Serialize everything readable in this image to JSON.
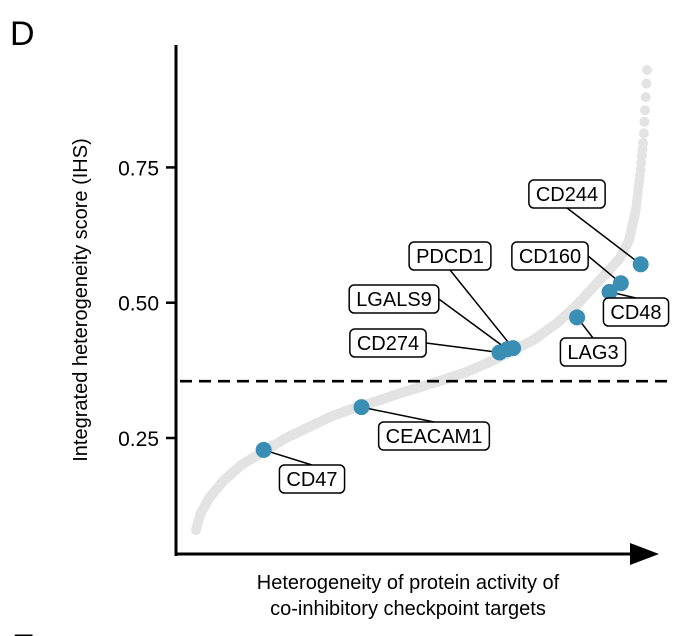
{
  "panel": {
    "letter": "D",
    "next_letter": "E"
  },
  "chart_data": {
    "type": "scatter",
    "xlabel_lines": [
      "Heterogeneity of protein activity of",
      "co-inhibitory checkpoint targets"
    ],
    "ylabel": "Integrated heterogeneity score (IHS)",
    "ylim": [
      0.06,
      0.97
    ],
    "yticks": [
      0.25,
      0.5,
      0.75
    ],
    "ytick_labels": [
      "0.25",
      "0.50",
      "0.75"
    ],
    "threshold": 0.355,
    "background_color": "#e3e3e3",
    "highlight_color": "#3a8db3",
    "background_curve": [
      [
        0.0,
        0.08
      ],
      [
        0.01,
        0.11
      ],
      [
        0.03,
        0.14
      ],
      [
        0.06,
        0.17
      ],
      [
        0.1,
        0.2
      ],
      [
        0.15,
        0.225
      ],
      [
        0.2,
        0.25
      ],
      [
        0.25,
        0.27
      ],
      [
        0.3,
        0.29
      ],
      [
        0.35,
        0.305
      ],
      [
        0.4,
        0.318
      ],
      [
        0.45,
        0.332
      ],
      [
        0.5,
        0.345
      ],
      [
        0.55,
        0.358
      ],
      [
        0.6,
        0.372
      ],
      [
        0.65,
        0.39
      ],
      [
        0.7,
        0.41
      ],
      [
        0.75,
        0.432
      ],
      [
        0.8,
        0.462
      ],
      [
        0.84,
        0.492
      ],
      [
        0.88,
        0.528
      ],
      [
        0.91,
        0.555
      ],
      [
        0.94,
        0.582
      ],
      [
        0.96,
        0.615
      ],
      [
        0.975,
        0.67
      ],
      [
        0.985,
        0.74
      ],
      [
        0.992,
        0.8
      ],
      [
        0.996,
        0.86
      ],
      [
        1.0,
        0.93
      ]
    ],
    "highlighted": [
      {
        "label": "CD47",
        "x": 0.15,
        "y": 0.228
      },
      {
        "label": "CEACAM1",
        "x": 0.367,
        "y": 0.307
      },
      {
        "label": "CD274",
        "x": 0.673,
        "y": 0.408
      },
      {
        "label": "LGALS9",
        "x": 0.69,
        "y": 0.414
      },
      {
        "label": "PDCD1",
        "x": 0.703,
        "y": 0.416
      },
      {
        "label": "LAG3",
        "x": 0.845,
        "y": 0.473
      },
      {
        "label": "CD48",
        "x": 0.917,
        "y": 0.52
      },
      {
        "label": "CD160",
        "x": 0.942,
        "y": 0.536
      },
      {
        "label": "CD244",
        "x": 0.986,
        "y": 0.571
      }
    ]
  }
}
